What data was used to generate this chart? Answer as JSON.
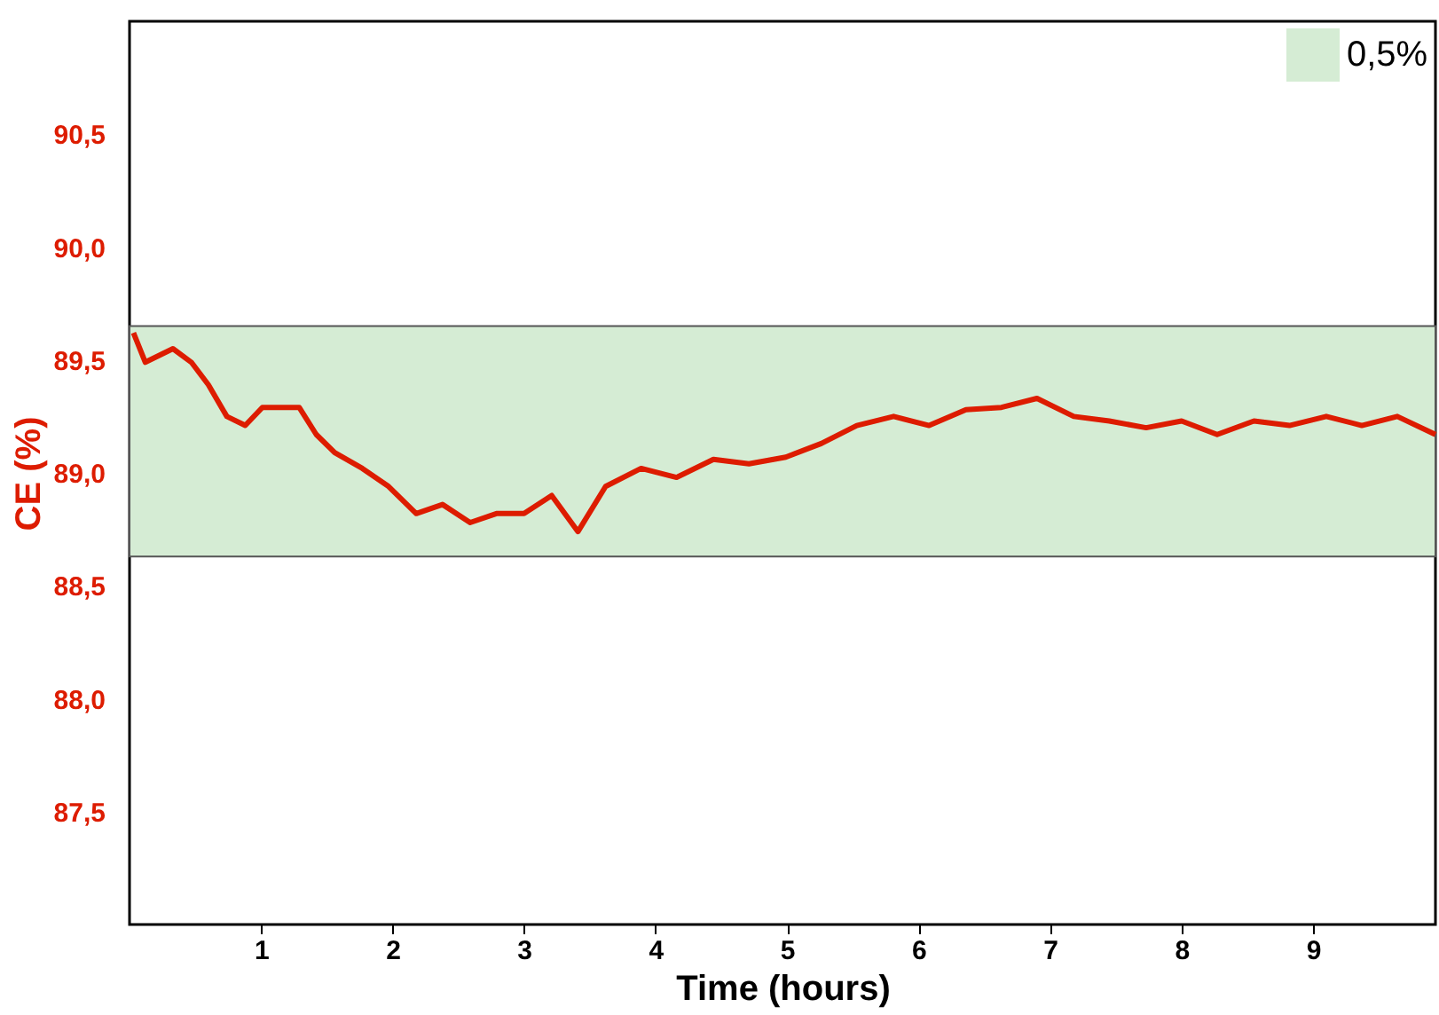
{
  "chart_data": {
    "type": "line",
    "xlabel": "Time (hours)",
    "ylabel": "CE (%)",
    "x": [
      0.03,
      0.12,
      0.33,
      0.47,
      0.6,
      0.74,
      0.88,
      1.01,
      1.29,
      1.42,
      1.56,
      1.77,
      1.97,
      2.18,
      2.38,
      2.59,
      2.79,
      3.0,
      3.21,
      3.41,
      3.62,
      3.89,
      4.16,
      4.44,
      4.71,
      4.99,
      5.26,
      5.53,
      5.81,
      6.08,
      6.36,
      6.63,
      6.9,
      7.18,
      7.45,
      7.73,
      8.0,
      8.27,
      8.55,
      8.82,
      9.1,
      9.37,
      9.64,
      9.93
    ],
    "series": [
      {
        "color": "#dd1c00",
        "values": [
          89.62,
          89.49,
          89.55,
          89.49,
          89.39,
          89.25,
          89.21,
          89.29,
          89.29,
          89.17,
          89.09,
          89.02,
          88.94,
          88.82,
          88.86,
          88.78,
          88.82,
          88.82,
          88.9,
          88.74,
          88.94,
          89.02,
          88.98,
          89.06,
          89.04,
          89.07,
          89.13,
          89.21,
          89.25,
          89.21,
          89.28,
          89.29,
          89.33,
          89.25,
          89.23,
          89.2,
          89.23,
          89.17,
          89.23,
          89.21,
          89.25,
          89.21,
          89.25,
          89.17
        ]
      }
    ],
    "xlim": [
      0,
      9.93
    ],
    "xticks": [
      1,
      2,
      3,
      4,
      5,
      6,
      7,
      8,
      9
    ],
    "ylim": [
      87,
      91
    ],
    "yticks": [
      {
        "value": 87.5,
        "label": "87,5"
      },
      {
        "value": 88,
        "label": "88,0"
      },
      {
        "value": 88.5,
        "label": "88,5"
      },
      {
        "value": 89,
        "label": "89,0"
      },
      {
        "value": 89.5,
        "label": "89,5"
      },
      {
        "value": 90,
        "label": "90,0"
      },
      {
        "value": 90.5,
        "label": "90,5"
      }
    ],
    "bands": [
      {
        "axis": "y",
        "from": 88.63,
        "to": 89.65,
        "label": "0,5%",
        "color": "#d5ecd4"
      }
    ],
    "legend": "top right",
    "grid": false,
    "marker": "none",
    "line_style": "solid"
  }
}
